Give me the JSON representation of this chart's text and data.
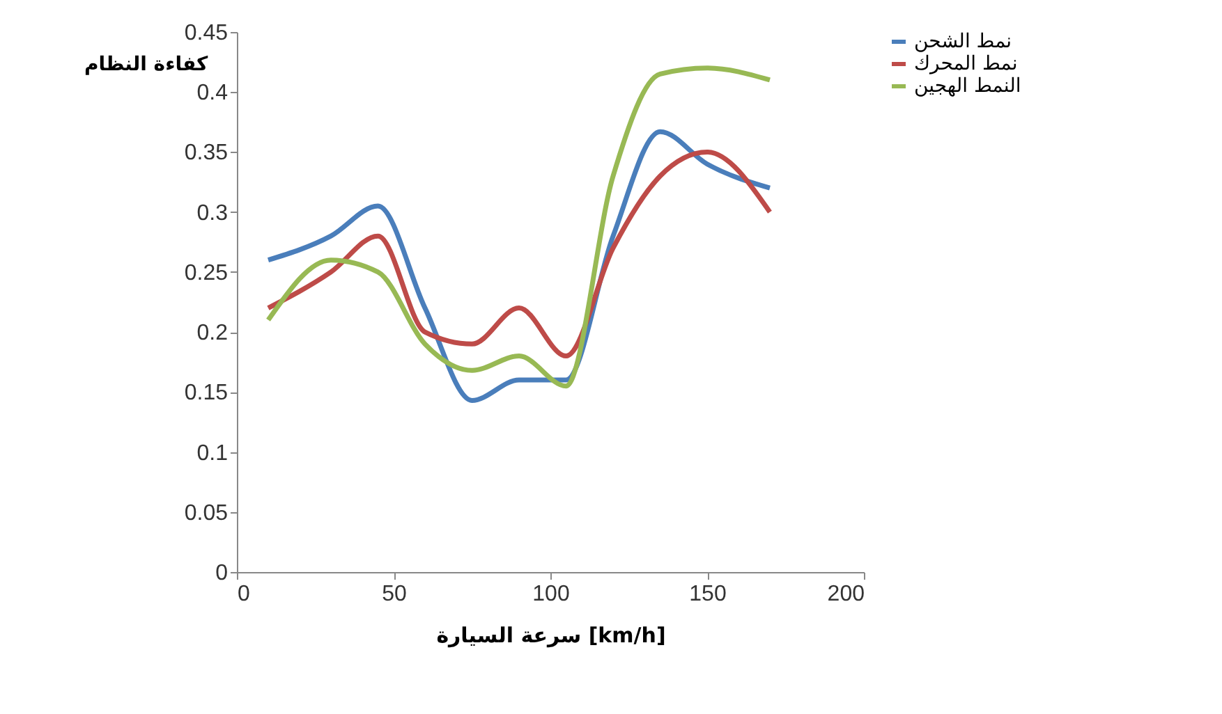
{
  "chart_data": {
    "type": "line",
    "xlabel": "سرعة السيارة [km/h]",
    "ylabel": "كفاءة النظام",
    "x": [
      10,
      30,
      45,
      60,
      75,
      90,
      105,
      120,
      135,
      150,
      170
    ],
    "series": [
      {
        "name": "نمط الشحن",
        "color": "#4a7ebb",
        "values": [
          0.26,
          0.28,
          0.305,
          0.22,
          0.143,
          0.16,
          0.16,
          0.28,
          0.367,
          0.34,
          0.32
        ]
      },
      {
        "name": "نمط المحرك",
        "color": "#be4b48",
        "values": [
          0.22,
          0.25,
          0.28,
          0.2,
          0.19,
          0.22,
          0.18,
          0.27,
          0.33,
          0.35,
          0.3
        ]
      },
      {
        "name": "النمط الهجين",
        "color": "#98b954",
        "values": [
          0.21,
          0.26,
          0.25,
          0.19,
          0.168,
          0.18,
          0.155,
          0.33,
          0.415,
          0.42,
          0.41
        ]
      }
    ],
    "xlim": [
      0,
      200
    ],
    "xticks": [
      0,
      50,
      100,
      150,
      200
    ],
    "ylim": [
      0,
      0.45
    ],
    "yticks": [
      0,
      0.05,
      0.1,
      0.15,
      0.2,
      0.25,
      0.3,
      0.35,
      0.4,
      0.45
    ],
    "legend": "right",
    "grid": false,
    "marker": "none",
    "line_style": "solid"
  }
}
